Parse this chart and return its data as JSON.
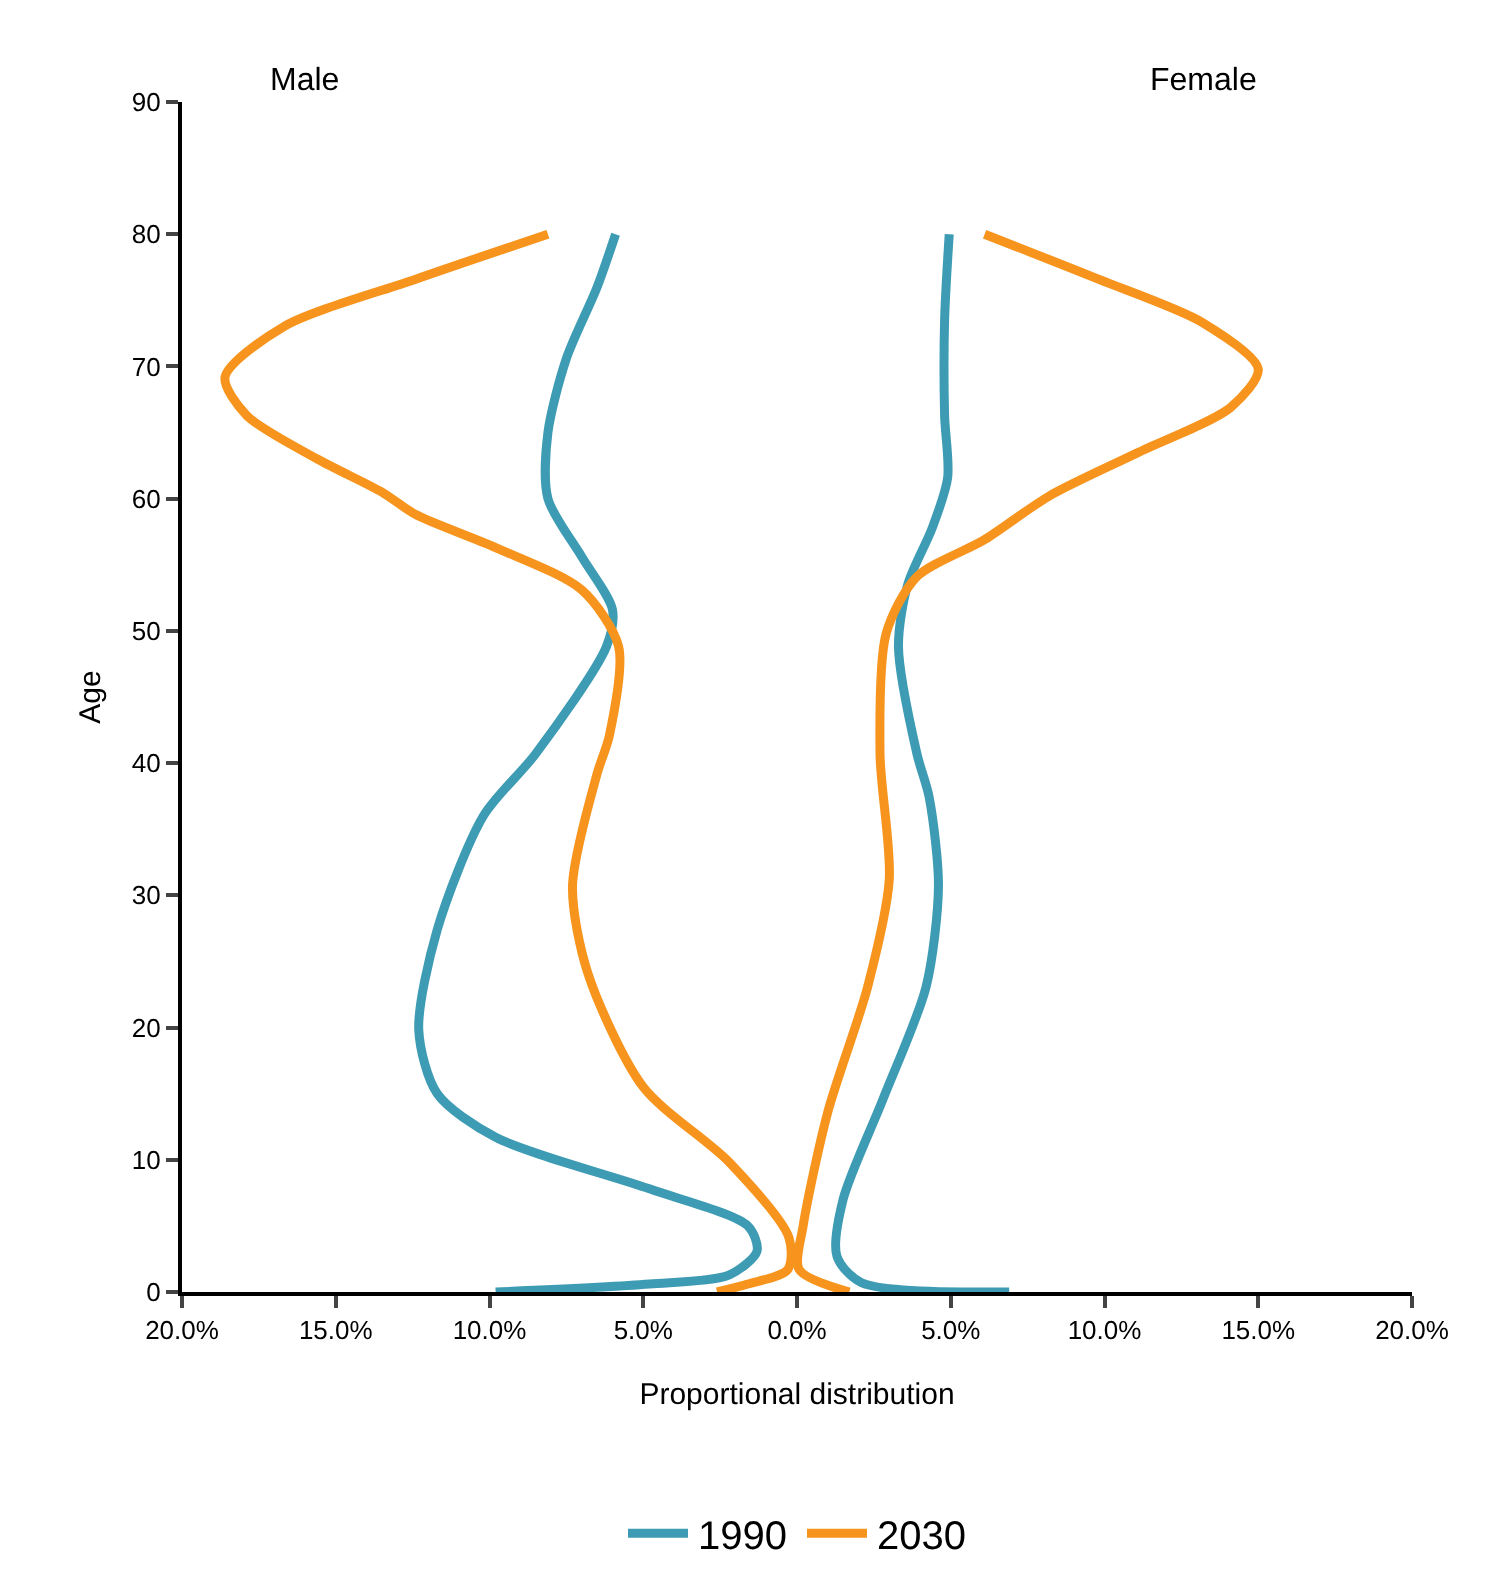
{
  "chart_data": {
    "type": "line",
    "xlabel": "Proportional distribution",
    "ylabel": "Age",
    "annotations": [
      "Male",
      "Female"
    ],
    "xlim": [
      -20,
      20
    ],
    "xticks": [
      {
        "value": -20,
        "label": "20.0%"
      },
      {
        "value": -15,
        "label": "15.0%"
      },
      {
        "value": -10,
        "label": "10.0%"
      },
      {
        "value": -5,
        "label": "5.0%"
      },
      {
        "value": 0,
        "label": "0.0%"
      },
      {
        "value": 5,
        "label": "5.0%"
      },
      {
        "value": 10,
        "label": "10.0%"
      },
      {
        "value": 15,
        "label": "15.0%"
      },
      {
        "value": 20,
        "label": "20.0%"
      }
    ],
    "ylim": [
      0,
      90
    ],
    "yticks": [
      0,
      10,
      20,
      30,
      40,
      50,
      60,
      70,
      80,
      90
    ],
    "grid": false,
    "legend": "bottom",
    "marker": "none",
    "line_style": "solid",
    "series": [
      {
        "name": "1990",
        "color": "#3d9bb3",
        "x": [
          -5.9,
          -6.5,
          -7.5,
          -8.1,
          -8.1,
          -7.0,
          -6.0,
          -6.2,
          -8.5,
          -10.2,
          -11.7,
          -12.3,
          -11.7,
          -9.8,
          -4.8,
          -1.6,
          -1.3,
          -2.2,
          -4.8,
          -9.8,
          null,
          4.95,
          4.8,
          4.8,
          4.9,
          4.4,
          3.6,
          3.3,
          3.9,
          4.3,
          4.6,
          4.2,
          2.8,
          1.5,
          1.3,
          2.1,
          6.9
        ],
        "values": [
          80,
          76,
          70.6,
          65,
          60,
          55.6,
          51.6,
          48.8,
          40.7,
          36,
          27.4,
          19.8,
          15,
          11.7,
          7.8,
          5,
          3.1,
          1.3,
          0.6,
          0,
          null,
          80,
          73.5,
          66.3,
          61.6,
          57.8,
          53.5,
          48.8,
          40.7,
          37.4,
          30.7,
          23.1,
          14.6,
          7,
          2.7,
          0.7,
          0
        ]
      },
      {
        "name": "2030",
        "color": "#f7941d",
        "x": [
          -8.1,
          -12.4,
          -16.7,
          -18.6,
          -17.9,
          -15.6,
          -13.5,
          -12.4,
          -9.8,
          -7.0,
          -5.8,
          -6.1,
          -6.5,
          -7.3,
          -6.8,
          -5.0,
          -2.2,
          -0.26,
          -0.3,
          -1.6,
          -2.6,
          null,
          6.1,
          9.8,
          13.2,
          15.0,
          14.1,
          11.1,
          8.2,
          6.1,
          3.9,
          2.9,
          2.7,
          3.0,
          2.3,
          1.0,
          0.2,
          0.07,
          1.7
        ],
        "values": [
          80,
          76.6,
          73,
          69.2,
          66.3,
          63,
          60.5,
          58.8,
          56.3,
          53.1,
          48.8,
          42.1,
          39.2,
          30.7,
          24.1,
          15.5,
          9.8,
          4.1,
          1.7,
          0.6,
          0,
          null,
          80,
          76.6,
          73.3,
          69.8,
          66.9,
          63.5,
          60.2,
          56.9,
          54.1,
          49.8,
          40.7,
          31.2,
          23.1,
          13.6,
          5,
          1.7,
          0
        ]
      }
    ]
  }
}
